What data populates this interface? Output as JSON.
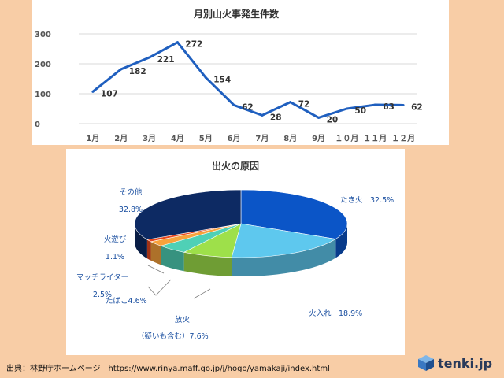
{
  "chart_data": [
    {
      "type": "line",
      "title": "月別山火事発生件数",
      "categories": [
        "1月",
        "2月",
        "3月",
        "4月",
        "5月",
        "6月",
        "7月",
        "8月",
        "9月",
        "１０月",
        "１１月",
        "１２月"
      ],
      "values": [
        107,
        182,
        221,
        272,
        154,
        62,
        28,
        72,
        20,
        50,
        63,
        62
      ],
      "value_labels": [
        "107",
        "182",
        "221",
        "272",
        "154",
        "62",
        "28",
        "72",
        "20",
        "50",
        "63",
        "62"
      ],
      "yticks": [
        "0",
        "100",
        "200",
        "300"
      ],
      "ylim": [
        0,
        300
      ],
      "grid": true,
      "color": "#1f5fbf"
    },
    {
      "type": "pie",
      "title": "出火の原因",
      "slices": [
        {
          "label": "たき火",
          "pct_text": "32.5%",
          "value": 32.5,
          "color": "#0b55c7"
        },
        {
          "label": "火入れ",
          "pct_text": "18.9%",
          "value": 18.9,
          "color": "#5ec8ee"
        },
        {
          "label": "放火",
          "sub": "（疑いも含む）",
          "pct_text": "7.6%",
          "value": 7.6,
          "color": "#9ee04a"
        },
        {
          "label": "たばこ",
          "pct_text": "4.6%",
          "value": 4.6,
          "color": "#4fd0b6"
        },
        {
          "label": "マッチライター",
          "pct_text": "2.5%",
          "value": 2.5,
          "color": "#f7a23c"
        },
        {
          "label": "火遊び",
          "pct_text": "1.1%",
          "value": 1.1,
          "color": "#e8481e"
        },
        {
          "label": "その他",
          "pct_text": "32.8%",
          "value": 32.8,
          "color": "#0d2a63"
        }
      ]
    }
  ],
  "footer": {
    "source": "出典：林野庁ホームページ　https://www.rinya.maff.go.jp/j/hogo/yamakaji/index.html",
    "brand": "tenki.jp"
  }
}
